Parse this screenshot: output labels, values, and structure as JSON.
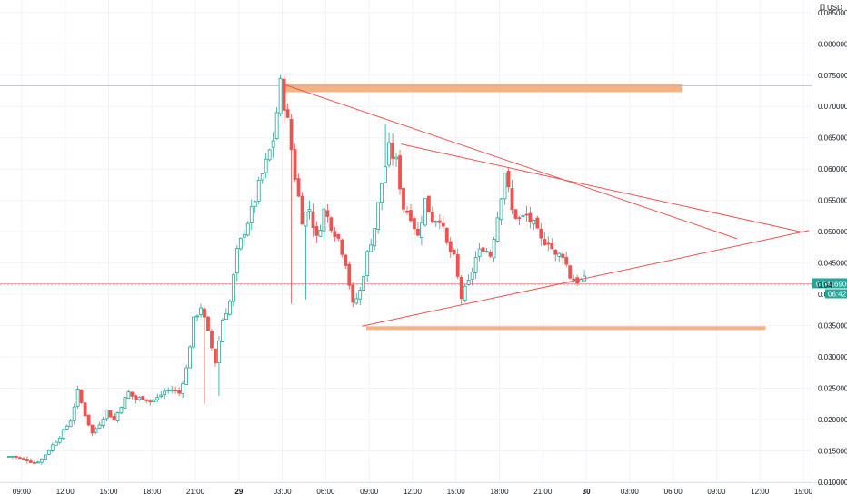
{
  "chart_data": {
    "type": "candlestick",
    "currency_label": "USD",
    "colors": {
      "up": "#26a69a",
      "down": "#ef5350",
      "trendline": "#ef5350",
      "zone": "#f7a56a",
      "grid": "#f0f3fa",
      "price_line": "#f0a7a4",
      "crosshair": "#90c0d8",
      "last_price_bg": "#26a69a"
    },
    "y_axis": {
      "min": 0.01,
      "max": 0.087,
      "ticks": [
        "0.08500000",
        "0.08000000",
        "0.07500000",
        "0.07000000",
        "0.06500000",
        "0.06000000",
        "0.05500000",
        "0.05000000",
        "0.04500000",
        "0.04000000",
        "0.03500000",
        "0.03000000",
        "0.02500000",
        "0.02000000",
        "0.01500000",
        "0.01000000"
      ]
    },
    "x_axis": {
      "start_hour": 8,
      "end_hour": 63,
      "ticks": [
        {
          "h": 9,
          "label": "09:00",
          "bold": false
        },
        {
          "h": 12,
          "label": "12:00",
          "bold": false
        },
        {
          "h": 15,
          "label": "15:00",
          "bold": false
        },
        {
          "h": 18,
          "label": "18:00",
          "bold": false
        },
        {
          "h": 21,
          "label": "21:00",
          "bold": false
        },
        {
          "h": 24,
          "label": "29",
          "bold": true
        },
        {
          "h": 27,
          "label": "03:00",
          "bold": false
        },
        {
          "h": 30,
          "label": "06:00",
          "bold": false
        },
        {
          "h": 33,
          "label": "09:00",
          "bold": false
        },
        {
          "h": 36,
          "label": "12:00",
          "bold": false
        },
        {
          "h": 39,
          "label": "15:00",
          "bold": false
        },
        {
          "h": 42,
          "label": "18:00",
          "bold": false
        },
        {
          "h": 45,
          "label": "21:00",
          "bold": false
        },
        {
          "h": 48,
          "label": "30",
          "bold": true
        },
        {
          "h": 51,
          "label": "03:00",
          "bold": false
        },
        {
          "h": 54,
          "label": "06:00",
          "bold": false
        },
        {
          "h": 57,
          "label": "09:00",
          "bold": false
        },
        {
          "h": 60,
          "label": "12:00",
          "bold": false
        },
        {
          "h": 63,
          "label": "15:00",
          "bold": false
        }
      ]
    },
    "last_price": {
      "value": 0.04169,
      "label": "0.04169000",
      "countdown": "06:42"
    },
    "hover_price": {
      "value": 0.0415,
      "label": "0.04"
    },
    "price_line_value": 0.04169,
    "close_points": [
      [
        8.0,
        0.0141
      ],
      [
        8.5,
        0.0142
      ],
      [
        9.0,
        0.0138
      ],
      [
        9.5,
        0.0136
      ],
      [
        10.0,
        0.0131
      ],
      [
        10.5,
        0.0137
      ],
      [
        11.0,
        0.0152
      ],
      [
        11.5,
        0.0166
      ],
      [
        12.0,
        0.0181
      ],
      [
        12.5,
        0.0199
      ],
      [
        13.0,
        0.0245
      ],
      [
        13.5,
        0.0208
      ],
      [
        14.0,
        0.0178
      ],
      [
        14.5,
        0.0194
      ],
      [
        15.0,
        0.0214
      ],
      [
        15.5,
        0.0199
      ],
      [
        16.0,
        0.0223
      ],
      [
        16.5,
        0.0243
      ],
      [
        17.0,
        0.0232
      ],
      [
        17.5,
        0.0236
      ],
      [
        18.0,
        0.0229
      ],
      [
        18.5,
        0.0234
      ],
      [
        19.0,
        0.0245
      ],
      [
        19.5,
        0.0248
      ],
      [
        20.0,
        0.0242
      ],
      [
        20.5,
        0.0281
      ],
      [
        21.0,
        0.0358
      ],
      [
        21.5,
        0.0381
      ],
      [
        22.0,
        0.0338
      ],
      [
        22.5,
        0.0292
      ],
      [
        23.0,
        0.036
      ],
      [
        23.5,
        0.0388
      ],
      [
        24.0,
        0.0467
      ],
      [
        24.5,
        0.0502
      ],
      [
        25.0,
        0.0532
      ],
      [
        25.5,
        0.0573
      ],
      [
        26.0,
        0.0609
      ],
      [
        26.5,
        0.0648
      ],
      [
        27.0,
        0.0735
      ],
      [
        27.5,
        0.0675
      ],
      [
        28.0,
        0.0589
      ],
      [
        28.5,
        0.0521
      ],
      [
        29.0,
        0.0537
      ],
      [
        29.5,
        0.0488
      ],
      [
        30.0,
        0.0534
      ],
      [
        30.5,
        0.0511
      ],
      [
        31.0,
        0.0489
      ],
      [
        31.5,
        0.0452
      ],
      [
        32.0,
        0.0382
      ],
      [
        32.5,
        0.0405
      ],
      [
        33.0,
        0.0464
      ],
      [
        33.5,
        0.0507
      ],
      [
        34.0,
        0.0578
      ],
      [
        34.5,
        0.0632
      ],
      [
        35.0,
        0.0611
      ],
      [
        35.5,
        0.0539
      ],
      [
        36.0,
        0.0527
      ],
      [
        36.5,
        0.0492
      ],
      [
        37.0,
        0.055
      ],
      [
        37.5,
        0.052
      ],
      [
        38.0,
        0.0523
      ],
      [
        38.5,
        0.0479
      ],
      [
        39.0,
        0.0457
      ],
      [
        39.5,
        0.0395
      ],
      [
        40.0,
        0.0418
      ],
      [
        40.5,
        0.0458
      ],
      [
        41.0,
        0.0476
      ],
      [
        41.5,
        0.0463
      ],
      [
        42.0,
        0.0525
      ],
      [
        42.5,
        0.0597
      ],
      [
        43.0,
        0.0533
      ],
      [
        43.5,
        0.0519
      ],
      [
        44.0,
        0.0525
      ],
      [
        44.5,
        0.051
      ],
      [
        45.0,
        0.0485
      ],
      [
        45.5,
        0.0487
      ],
      [
        46.0,
        0.046
      ],
      [
        46.5,
        0.0465
      ],
      [
        47.0,
        0.0429
      ],
      [
        47.5,
        0.0422
      ]
    ],
    "support_zone": {
      "from_hour": 32.8,
      "to_hour": 60.4,
      "low": 0.0344,
      "high": 0.0349
    },
    "resistance_zone": {
      "from_hour": 27.0,
      "to_hour": 54.6,
      "low": 0.0725,
      "high": 0.0736
    },
    "trendlines": [
      {
        "from": [
          27.0,
          0.0736
        ],
        "to": [
          58.4,
          0.0489
        ]
      },
      {
        "from": [
          35.2,
          0.064
        ],
        "to": [
          63.0,
          0.0499
        ]
      },
      {
        "from": [
          32.5,
          0.0349
        ],
        "to": [
          63.4,
          0.0502
        ]
      }
    ],
    "horizontal_line": {
      "value": 0.0733
    }
  }
}
